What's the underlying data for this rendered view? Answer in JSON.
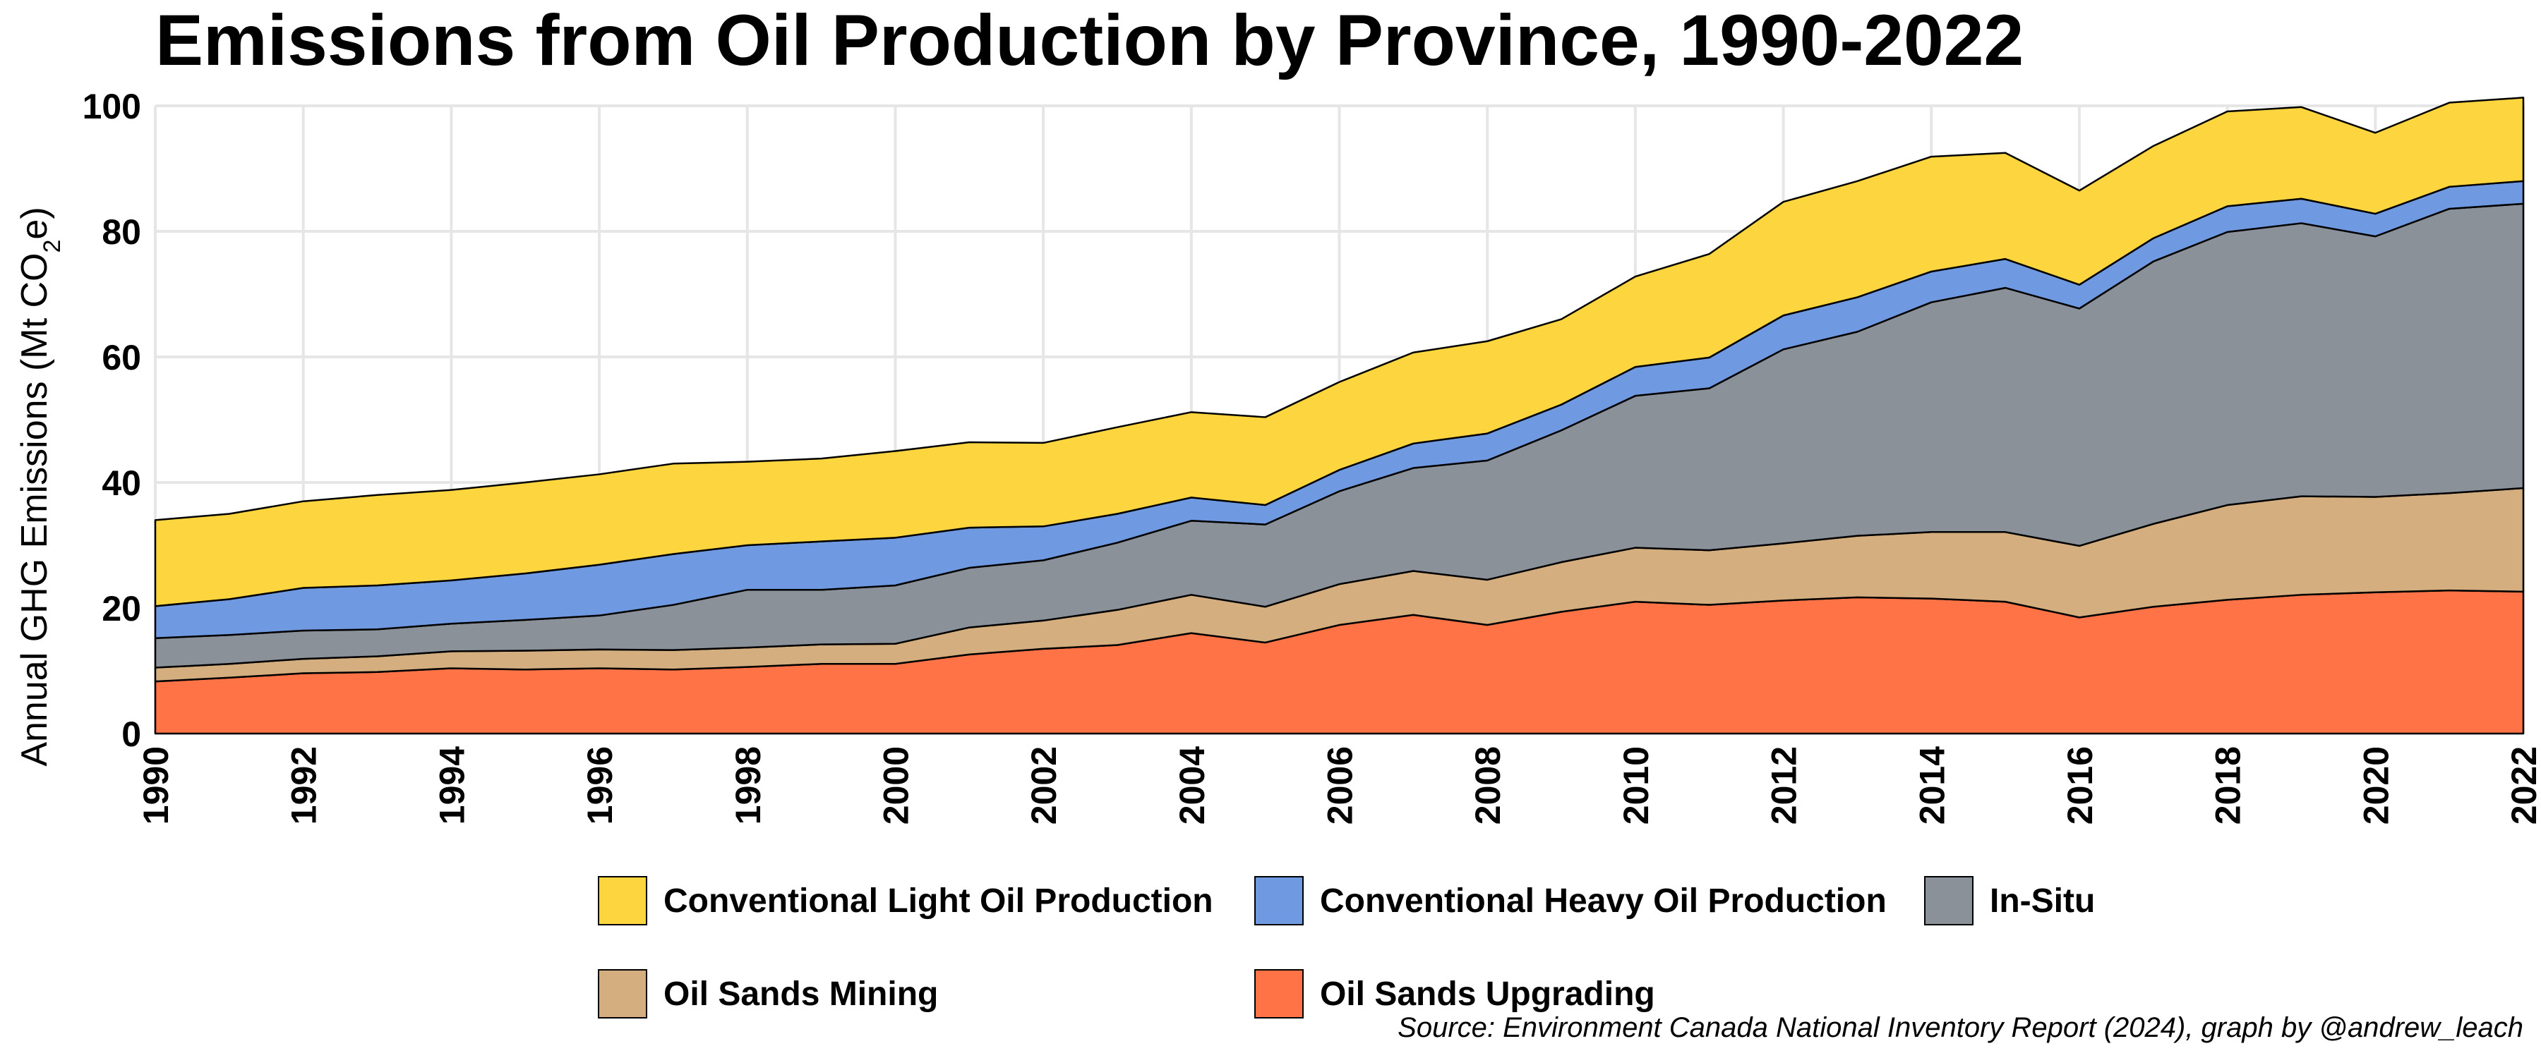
{
  "chart_data": {
    "type": "area",
    "stacked": true,
    "title": "Emissions from Oil Production by Province, 1990-2022",
    "ylabel_main": "Annual GHG Emissions  (Mt CO",
    "ylabel_sub": "2",
    "ylabel_end": "e)",
    "xlabel": "",
    "ylim": [
      0,
      100
    ],
    "yticks": [
      "0",
      "20",
      "40",
      "60",
      "80",
      "100"
    ],
    "xticks": [
      "1990",
      "1992",
      "1994",
      "1996",
      "1998",
      "2000",
      "2002",
      "2004",
      "2006",
      "2008",
      "2010",
      "2012",
      "2014",
      "2016",
      "2018",
      "2020",
      "2022"
    ],
    "grid": true,
    "legend_position": "bottom",
    "x": [
      1990,
      1991,
      1992,
      1993,
      1994,
      1995,
      1996,
      1997,
      1998,
      1999,
      2000,
      2001,
      2002,
      2003,
      2004,
      2005,
      2006,
      2007,
      2008,
      2009,
      2010,
      2011,
      2012,
      2013,
      2014,
      2015,
      2016,
      2017,
      2018,
      2019,
      2020,
      2021,
      2022
    ],
    "series": [
      {
        "name": "Oil Sands Upgrading",
        "color": "#FF7347",
        "values": [
          8.3,
          8.9,
          9.6,
          9.8,
          10.4,
          10.2,
          10.4,
          10.2,
          10.6,
          11.1,
          11.1,
          12.6,
          13.5,
          14.1,
          16.0,
          14.5,
          17.3,
          18.9,
          17.3,
          19.4,
          21.0,
          20.5,
          21.2,
          21.7,
          21.5,
          21.0,
          18.5,
          20.2,
          21.3,
          22.1,
          22.5,
          22.8,
          22.6
        ]
      },
      {
        "name": "Oil Sands Mining",
        "color": "#D4AE7E",
        "values": [
          2.2,
          2.2,
          2.3,
          2.5,
          2.7,
          3.0,
          3.0,
          3.1,
          3.1,
          3.1,
          3.2,
          4.3,
          4.5,
          5.6,
          6.1,
          5.7,
          6.5,
          7.0,
          7.2,
          7.9,
          8.6,
          8.7,
          9.1,
          9.8,
          10.6,
          11.1,
          11.4,
          13.2,
          15.1,
          15.7,
          15.2,
          15.5,
          16.5
        ]
      },
      {
        "name": "In-Situ",
        "color": "#8A9199",
        "values": [
          4.7,
          4.6,
          4.5,
          4.3,
          4.4,
          4.9,
          5.4,
          7.2,
          9.2,
          8.7,
          9.3,
          9.5,
          9.6,
          10.7,
          11.8,
          13.1,
          14.8,
          16.4,
          19.0,
          21.0,
          24.2,
          25.8,
          30.9,
          32.5,
          36.6,
          38.9,
          37.8,
          41.8,
          43.5,
          43.5,
          41.5,
          45.3,
          45.3
        ]
      },
      {
        "name": "Conventional Heavy Oil Production",
        "color": "#6F9AE1",
        "values": [
          5.1,
          5.7,
          6.8,
          7.0,
          6.9,
          7.4,
          8.1,
          8.1,
          7.1,
          7.7,
          7.6,
          6.4,
          5.4,
          4.6,
          3.7,
          3.1,
          3.4,
          3.9,
          4.3,
          4.1,
          4.6,
          4.9,
          5.4,
          5.5,
          4.9,
          4.6,
          3.8,
          3.7,
          4.1,
          3.9,
          3.6,
          3.5,
          3.6
        ]
      },
      {
        "name": "Conventional Light Oil Production",
        "color": "#FDD53E",
        "values": [
          13.7,
          13.6,
          13.8,
          14.4,
          14.4,
          14.5,
          14.4,
          14.4,
          13.3,
          13.2,
          13.8,
          13.6,
          13.3,
          13.8,
          13.6,
          14.0,
          14.0,
          14.5,
          14.7,
          13.6,
          14.4,
          16.5,
          18.1,
          18.5,
          18.3,
          16.9,
          15.0,
          14.7,
          15.1,
          14.6,
          12.9,
          13.4,
          13.3
        ]
      }
    ],
    "legend_rows": [
      [
        "Conventional Light Oil Production",
        "Conventional Heavy Oil Production",
        "In-Situ"
      ],
      [
        "Oil Sands Mining",
        "Oil Sands Upgrading"
      ]
    ],
    "source": "Source: Environment Canada National Inventory Report (2024), graph by @andrew_leach"
  }
}
